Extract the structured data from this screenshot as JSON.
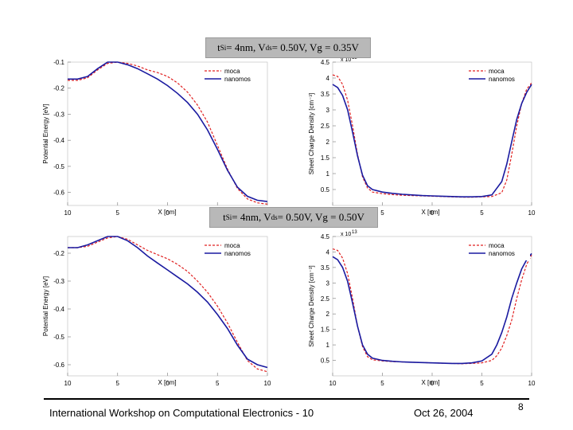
{
  "banners": [
    {
      "parts": [
        {
          "t": "t"
        },
        {
          "t": "Si",
          "sub": true
        },
        {
          "t": " = 4nm, V"
        },
        {
          "t": "ds",
          "sub": true
        },
        {
          "t": " = 0.50V, Vg = 0.35V"
        }
      ]
    },
    {
      "parts": [
        {
          "t": "t"
        },
        {
          "t": "Si",
          "sub": true
        },
        {
          "t": " = 4nm, V"
        },
        {
          "t": "ds",
          "sub": true
        },
        {
          "t": " = 0.50V, Vg = 0.50V"
        }
      ]
    }
  ],
  "footer": {
    "workshop": "International Workshop on Computational Electronics - 10",
    "date": "Oct 26, 2004",
    "page": "8"
  },
  "colors": {
    "moca": "#e02020",
    "nanomos": "#1a1aa0"
  },
  "chart_data": [
    {
      "type": "line",
      "xlabel": "X [nm]",
      "ylabel": "Potential Energy [eV]",
      "xlim": [
        -10,
        10
      ],
      "ylim": [
        -0.65,
        -0.1
      ],
      "x_ticks": [
        -10,
        -5,
        0,
        5,
        10
      ],
      "x_tick_labels": [
        "10",
        "5",
        "0",
        "5",
        "10"
      ],
      "y_ticks": [
        -0.1,
        -0.2,
        -0.3,
        -0.4,
        -0.5,
        -0.6
      ],
      "y_tick_labels": [
        "-0.1",
        "-0.2",
        "-0.3",
        "-0.4",
        "-0.5",
        "-0.6"
      ],
      "legend_position": "top-right",
      "series": [
        {
          "name": "moca",
          "style": "dashed",
          "x": [
            -10,
            -9,
            -8,
            -7,
            -6,
            -5,
            -4,
            -3,
            -2,
            -1,
            0,
            1,
            2,
            3,
            4,
            5,
            6,
            7,
            8,
            9,
            10
          ],
          "y": [
            -0.17,
            -0.17,
            -0.16,
            -0.13,
            -0.105,
            -0.1,
            -0.105,
            -0.115,
            -0.13,
            -0.14,
            -0.155,
            -0.18,
            -0.215,
            -0.265,
            -0.33,
            -0.42,
            -0.51,
            -0.585,
            -0.625,
            -0.64,
            -0.645
          ]
        },
        {
          "name": "nanomos",
          "style": "solid",
          "x": [
            -10,
            -9,
            -8,
            -7,
            -6,
            -5,
            -4,
            -3,
            -2,
            -1,
            0,
            1,
            2,
            3,
            4,
            5,
            6,
            7,
            8,
            9,
            10
          ],
          "y": [
            -0.165,
            -0.165,
            -0.155,
            -0.125,
            -0.1,
            -0.1,
            -0.11,
            -0.125,
            -0.145,
            -0.165,
            -0.19,
            -0.22,
            -0.255,
            -0.3,
            -0.36,
            -0.435,
            -0.515,
            -0.58,
            -0.615,
            -0.63,
            -0.635
          ]
        }
      ]
    },
    {
      "type": "line",
      "xlabel": "X [nm]",
      "ylabel": "Sheet Charge Density [cm⁻³]",
      "axis_multiplier": "x 10",
      "axis_multiplier_exp": "13",
      "xlim": [
        -10,
        10
      ],
      "ylim": [
        0,
        4.5
      ],
      "x_ticks": [
        -10,
        -5,
        0,
        5,
        10
      ],
      "x_tick_labels": [
        "10",
        "5",
        "0",
        "5",
        "10"
      ],
      "y_ticks": [
        0.5,
        1,
        1.5,
        2,
        2.5,
        3,
        3.5,
        4,
        4.5
      ],
      "y_tick_labels": [
        "0.5",
        "1",
        "1.5",
        "2",
        "2.5",
        "3",
        "3.5",
        "4",
        "4.5"
      ],
      "legend_position": "top-right",
      "series": [
        {
          "name": "moca",
          "style": "dashed",
          "x": [
            -10,
            -9.5,
            -9,
            -8.5,
            -8,
            -7.5,
            -7,
            -6.5,
            -6,
            -5,
            -4,
            -3,
            -2,
            -1,
            0,
            1,
            2,
            3,
            4,
            5,
            6,
            7,
            7.5,
            8,
            8.5,
            9,
            9.5,
            10
          ],
          "y": [
            4.1,
            4.05,
            3.8,
            3.3,
            2.5,
            1.6,
            0.9,
            0.55,
            0.42,
            0.37,
            0.34,
            0.32,
            0.31,
            0.3,
            0.29,
            0.28,
            0.27,
            0.26,
            0.26,
            0.27,
            0.28,
            0.4,
            0.8,
            1.6,
            2.5,
            3.2,
            3.65,
            3.85
          ]
        },
        {
          "name": "nanomos",
          "style": "solid",
          "x": [
            -10,
            -9.5,
            -9,
            -8.5,
            -8,
            -7.5,
            -7,
            -6.5,
            -6,
            -5,
            -4,
            -3,
            -2,
            -1,
            0,
            1,
            2,
            3,
            4,
            5,
            6,
            7,
            7.5,
            8,
            8.5,
            9,
            9.5,
            10
          ],
          "y": [
            3.8,
            3.7,
            3.45,
            3.0,
            2.3,
            1.55,
            0.95,
            0.62,
            0.5,
            0.42,
            0.38,
            0.35,
            0.33,
            0.31,
            0.3,
            0.29,
            0.28,
            0.27,
            0.27,
            0.28,
            0.33,
            0.75,
            1.3,
            2.0,
            2.7,
            3.2,
            3.55,
            3.8
          ]
        }
      ]
    },
    {
      "type": "line",
      "xlabel": "X [nm]",
      "ylabel": "Potential Energy [eV]",
      "xlim": [
        -10,
        10
      ],
      "ylim": [
        -0.64,
        -0.14
      ],
      "x_ticks": [
        -10,
        -5,
        0,
        5,
        10
      ],
      "x_tick_labels": [
        "10",
        "5",
        "0",
        "5",
        "10"
      ],
      "y_ticks": [
        -0.2,
        -0.3,
        -0.4,
        -0.5,
        -0.6
      ],
      "y_tick_labels": [
        "-0.2",
        "-0.3",
        "-0.4",
        "-0.5",
        "-0.6"
      ],
      "legend_position": "top-right",
      "series": [
        {
          "name": "moca",
          "style": "dashed",
          "x": [
            -10,
            -9,
            -8,
            -7,
            -6,
            -5,
            -4,
            -3,
            -2,
            -1,
            0,
            1,
            2,
            3,
            4,
            5,
            6,
            7,
            8,
            9,
            10
          ],
          "y": [
            -0.18,
            -0.18,
            -0.175,
            -0.16,
            -0.145,
            -0.14,
            -0.15,
            -0.17,
            -0.19,
            -0.205,
            -0.22,
            -0.24,
            -0.265,
            -0.3,
            -0.34,
            -0.39,
            -0.45,
            -0.52,
            -0.585,
            -0.615,
            -0.625
          ]
        },
        {
          "name": "nanomos",
          "style": "solid",
          "x": [
            -10,
            -9,
            -8,
            -7,
            -6,
            -5,
            -4,
            -3,
            -2,
            -1,
            0,
            1,
            2,
            3,
            4,
            5,
            6,
            7,
            8,
            9,
            10
          ],
          "y": [
            -0.18,
            -0.18,
            -0.17,
            -0.155,
            -0.14,
            -0.14,
            -0.155,
            -0.18,
            -0.21,
            -0.235,
            -0.26,
            -0.285,
            -0.31,
            -0.34,
            -0.375,
            -0.42,
            -0.47,
            -0.53,
            -0.58,
            -0.6,
            -0.61
          ]
        }
      ]
    },
    {
      "type": "line",
      "xlabel": "X [nm]",
      "ylabel": "Sheet Charge Density [cm⁻³]",
      "axis_multiplier": "x 10",
      "axis_multiplier_exp": "13",
      "xlim": [
        -10,
        10
      ],
      "ylim": [
        0,
        4.5
      ],
      "x_ticks": [
        -10,
        -5,
        0,
        5,
        10
      ],
      "x_tick_labels": [
        "10",
        "5",
        "0",
        "5",
        "10"
      ],
      "y_ticks": [
        0.5,
        1,
        1.5,
        2,
        2.5,
        3,
        3.5,
        4,
        4.5
      ],
      "y_tick_labels": [
        "0.5",
        "1",
        "1.5",
        "2",
        "2.5",
        "3",
        "3.5",
        "4",
        "4.5"
      ],
      "legend_position": "top-right",
      "series": [
        {
          "name": "moca",
          "style": "dashed",
          "x": [
            -10,
            -9.5,
            -9,
            -8.5,
            -8,
            -7.5,
            -7,
            -6.5,
            -6,
            -5,
            -4,
            -3,
            -2,
            -1,
            0,
            1,
            2,
            3,
            4,
            5,
            6,
            6.5,
            7,
            7.5,
            8,
            8.5,
            9,
            9.5,
            10
          ],
          "y": [
            4.1,
            4.05,
            3.8,
            3.3,
            2.5,
            1.6,
            0.95,
            0.62,
            0.52,
            0.48,
            0.46,
            0.45,
            0.44,
            0.43,
            0.42,
            0.41,
            0.4,
            0.39,
            0.4,
            0.42,
            0.5,
            0.65,
            0.9,
            1.3,
            1.8,
            2.5,
            3.1,
            3.6,
            3.9
          ]
        },
        {
          "name": "nanomos",
          "style": "solid",
          "x": [
            -10,
            -9.5,
            -9,
            -8.5,
            -8,
            -7.5,
            -7,
            -6.5,
            -6,
            -5,
            -4,
            -3,
            -2,
            -1,
            0,
            1,
            2,
            3,
            4,
            5,
            6,
            6.5,
            7,
            7.5,
            8,
            8.5,
            9,
            9.5,
            10
          ],
          "y": [
            3.85,
            3.75,
            3.5,
            3.05,
            2.35,
            1.6,
            1.0,
            0.7,
            0.57,
            0.5,
            0.47,
            0.45,
            0.44,
            0.43,
            0.42,
            0.41,
            0.4,
            0.4,
            0.42,
            0.48,
            0.7,
            1.0,
            1.4,
            1.9,
            2.5,
            3.0,
            3.45,
            3.75,
            3.95
          ]
        }
      ]
    }
  ]
}
